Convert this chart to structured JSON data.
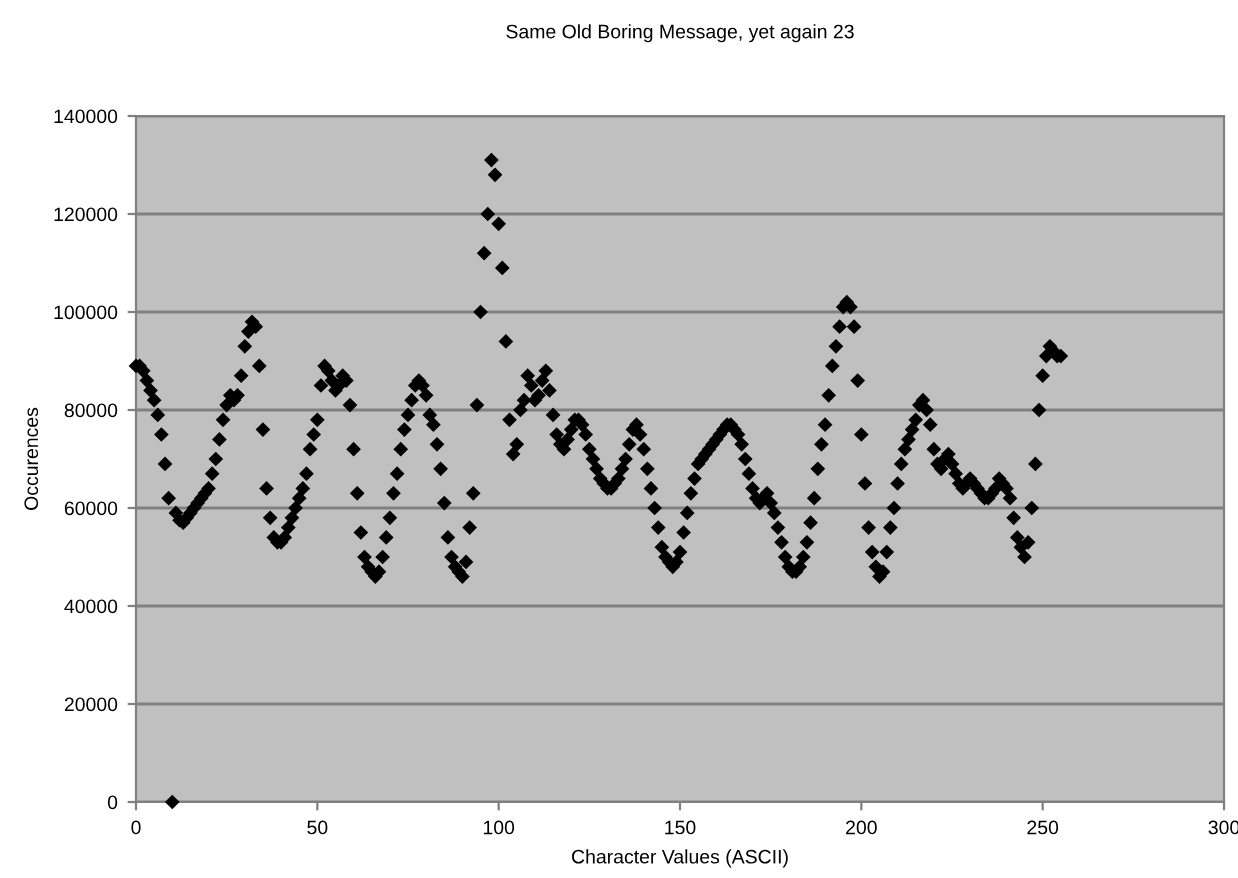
{
  "chart_data": {
    "type": "scatter",
    "title": "Same Old Boring Message, yet again 23",
    "xlabel": "Character Values (ASCII)",
    "ylabel": "Occurences",
    "marker": "diamond",
    "grid": "y",
    "xlim": [
      0,
      300
    ],
    "xticks": [
      0,
      50,
      100,
      150,
      200,
      250,
      300
    ],
    "ylim": [
      0,
      140000
    ],
    "yticks": [
      0,
      20000,
      40000,
      60000,
      80000,
      100000,
      120000,
      140000
    ],
    "series": [
      {
        "color": "#000000",
        "x": [
          0,
          1,
          2,
          3,
          4,
          5,
          6,
          7,
          8,
          9,
          10,
          11,
          12,
          13,
          14,
          15,
          16,
          17,
          18,
          19,
          20,
          21,
          22,
          23,
          24,
          25,
          26,
          27,
          28,
          29,
          30,
          31,
          32,
          33,
          34,
          35,
          36,
          37,
          38,
          39,
          40,
          41,
          42,
          43,
          44,
          45,
          46,
          47,
          48,
          49,
          50,
          51,
          52,
          53,
          54,
          55,
          56,
          57,
          58,
          59,
          60,
          61,
          62,
          63,
          64,
          65,
          66,
          67,
          68,
          69,
          70,
          71,
          72,
          73,
          74,
          75,
          76,
          77,
          78,
          79,
          80,
          81,
          82,
          83,
          84,
          85,
          86,
          87,
          88,
          89,
          90,
          91,
          92,
          93,
          94,
          95,
          96,
          97,
          98,
          99,
          100,
          101,
          102,
          103,
          104,
          105,
          106,
          107,
          108,
          109,
          110,
          111,
          112,
          113,
          114,
          115,
          116,
          117,
          118,
          119,
          120,
          121,
          122,
          123,
          124,
          125,
          126,
          127,
          128,
          129,
          130,
          131,
          132,
          133,
          134,
          135,
          136,
          137,
          138,
          139,
          140,
          141,
          142,
          143,
          144,
          145,
          146,
          147,
          148,
          149,
          150,
          151,
          152,
          153,
          154,
          155,
          156,
          157,
          158,
          159,
          160,
          161,
          162,
          163,
          164,
          165,
          166,
          167,
          168,
          169,
          170,
          171,
          172,
          173,
          174,
          175,
          176,
          177,
          178,
          179,
          180,
          181,
          182,
          183,
          184,
          185,
          186,
          187,
          188,
          189,
          190,
          191,
          192,
          193,
          194,
          195,
          196,
          197,
          198,
          199,
          200,
          201,
          202,
          203,
          204,
          205,
          206,
          207,
          208,
          209,
          210,
          211,
          212,
          213,
          214,
          215,
          216,
          217,
          218,
          219,
          220,
          221,
          222,
          223,
          224,
          225,
          226,
          227,
          228,
          229,
          230,
          231,
          232,
          233,
          234,
          235,
          236,
          237,
          238,
          239,
          240,
          241,
          242,
          243,
          244,
          245,
          246,
          247,
          248,
          249,
          250,
          251,
          252,
          253,
          254,
          255
        ],
        "values": [
          89000,
          89000,
          88000,
          86000,
          84000,
          82000,
          79000,
          75000,
          69000,
          62000,
          0,
          59000,
          57500,
          57000,
          58000,
          59000,
          60000,
          61000,
          62000,
          63000,
          64000,
          67000,
          70000,
          74000,
          78000,
          81000,
          83000,
          82000,
          83000,
          87000,
          93000,
          96000,
          98000,
          97000,
          89000,
          76000,
          64000,
          58000,
          54000,
          53000,
          53000,
          54000,
          56000,
          58000,
          60000,
          62000,
          64000,
          67000,
          72000,
          75000,
          78000,
          85000,
          89000,
          88000,
          86000,
          84000,
          85000,
          87000,
          86000,
          81000,
          72000,
          63000,
          55000,
          50000,
          48000,
          47000,
          46000,
          47000,
          50000,
          54000,
          58000,
          63000,
          67000,
          72000,
          76000,
          79000,
          82000,
          85000,
          86000,
          85000,
          83000,
          79000,
          77000,
          73000,
          68000,
          61000,
          54000,
          50000,
          48000,
          47000,
          46000,
          49000,
          56000,
          63000,
          81000,
          100000,
          112000,
          120000,
          131000,
          128000,
          118000,
          109000,
          94000,
          78000,
          71000,
          73000,
          80000,
          82000,
          87000,
          85000,
          82000,
          83000,
          86000,
          88000,
          84000,
          79000,
          75000,
          73000,
          72000,
          74000,
          76000,
          78000,
          78000,
          77000,
          75000,
          72000,
          70000,
          68000,
          66000,
          65000,
          64000,
          64000,
          65000,
          66000,
          68000,
          70000,
          73000,
          76000,
          77000,
          75000,
          72000,
          68000,
          64000,
          60000,
          56000,
          52000,
          50000,
          49000,
          48000,
          49000,
          51000,
          55000,
          59000,
          63000,
          66000,
          69000,
          70000,
          71000,
          72000,
          73000,
          74000,
          75000,
          76000,
          77000,
          77000,
          76000,
          75000,
          73000,
          70000,
          67000,
          64000,
          62000,
          61000,
          62000,
          63000,
          61000,
          59000,
          56000,
          53000,
          50000,
          48000,
          47000,
          47000,
          48000,
          50000,
          53000,
          57000,
          62000,
          68000,
          73000,
          77000,
          83000,
          89000,
          93000,
          97000,
          101000,
          102000,
          101000,
          97000,
          86000,
          75000,
          65000,
          56000,
          51000,
          48000,
          46000,
          47000,
          51000,
          56000,
          60000,
          65000,
          69000,
          72000,
          74000,
          76000,
          78000,
          81000,
          82000,
          80000,
          77000,
          72000,
          69000,
          68000,
          70000,
          71000,
          69000,
          67000,
          65000,
          64000,
          65000,
          66000,
          65000,
          64000,
          63000,
          62000,
          62000,
          63000,
          64000,
          66000,
          65000,
          64000,
          62000,
          58000,
          54000,
          52000,
          50000,
          53000,
          60000,
          69000,
          80000,
          87000,
          91000,
          93000,
          92000,
          91000,
          91000
        ]
      }
    ]
  }
}
